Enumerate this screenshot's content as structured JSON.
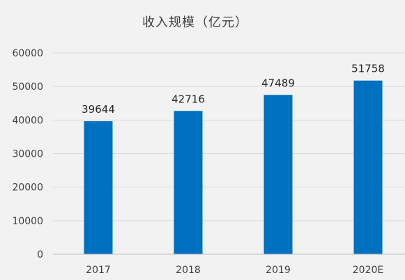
{
  "chart_data": {
    "type": "bar",
    "title": "收入规模（亿元）",
    "categories": [
      "2017",
      "2018",
      "2019",
      "2020E"
    ],
    "values": [
      39644,
      42716,
      47489,
      51758
    ],
    "data_labels": [
      "39644",
      "42716",
      "47489",
      "51758"
    ],
    "y_ticks": [
      "0",
      "10000",
      "20000",
      "30000",
      "40000",
      "50000",
      "60000"
    ],
    "ylim": [
      0,
      60000
    ],
    "xlabel": "",
    "ylabel": "",
    "grid": true,
    "legend": "none",
    "bar_color": "#0070c0",
    "grid_color": "#d9d9d9",
    "axis_color": "#bfbfbf"
  }
}
